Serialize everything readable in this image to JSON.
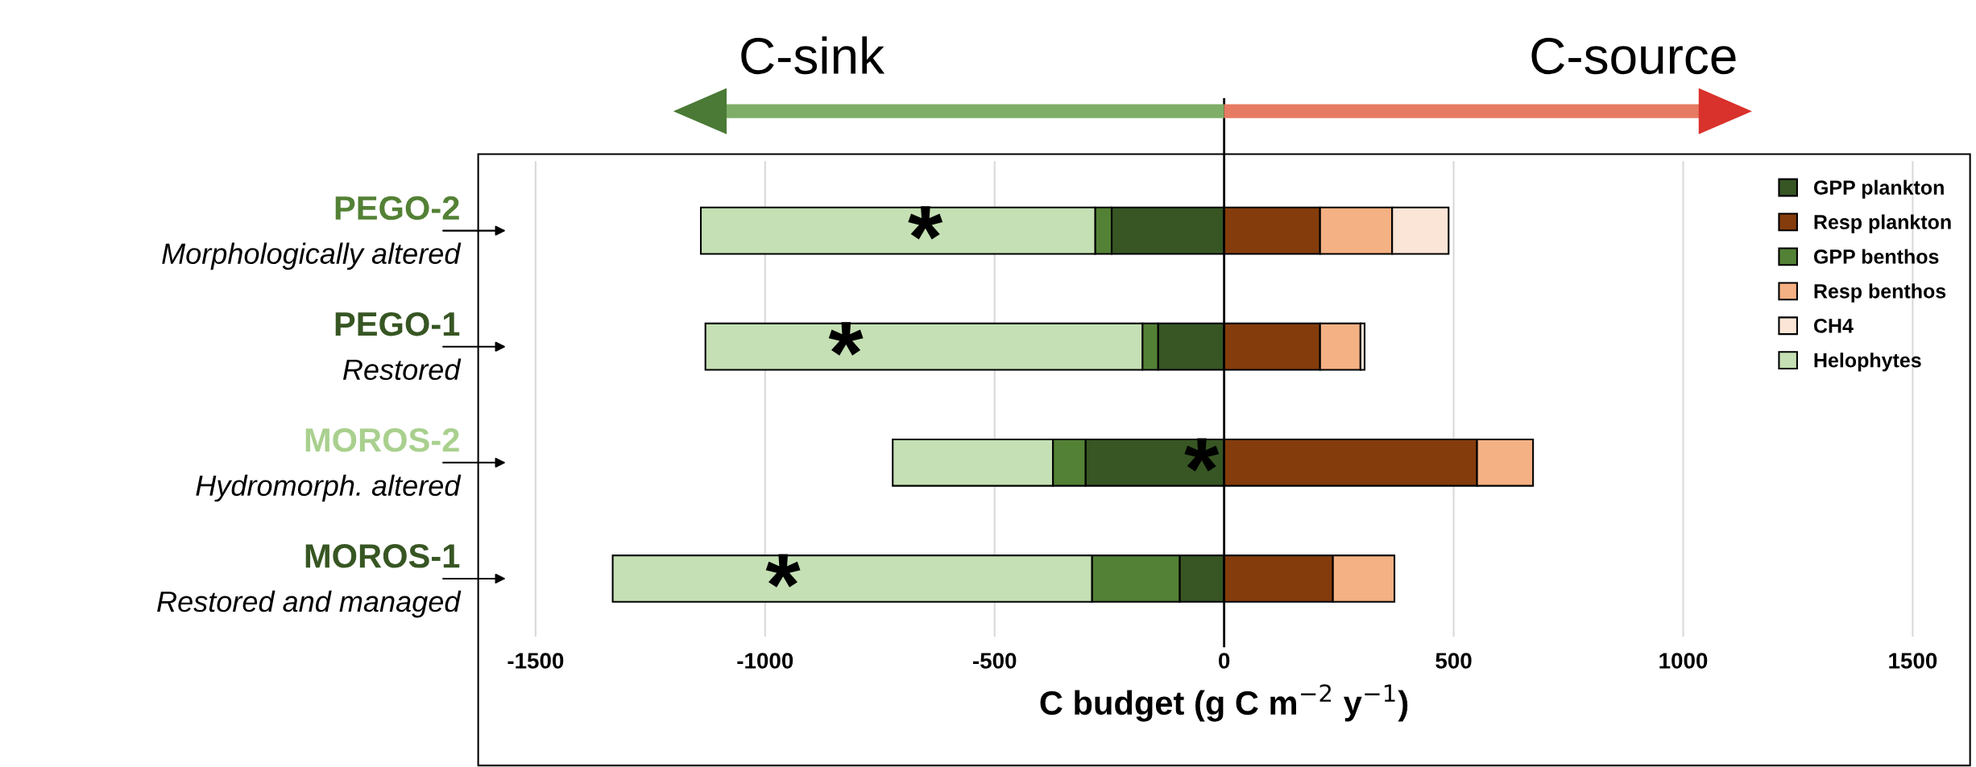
{
  "chart_data": {
    "type": "bar",
    "orientation": "horizontal",
    "stacked": true,
    "xlabel": "C budget (g C m$^{−2}$ y$^{−1}$)",
    "categories": [
      "PEGO-2\nMorphologically altered",
      "PEGO-1\nRestored",
      "MOROS-2\nHydromorph. altered",
      "MOROS-1\nRestored and managed"
    ],
    "series": [
      {
        "name": "GPP plankton",
        "color": "#375623",
        "values": [
          -245,
          -144,
          -302,
          -97
        ]
      },
      {
        "name": "Resp plankton",
        "color": "#843c0c",
        "values": [
          209,
          209,
          551,
          237
        ]
      },
      {
        "name": "GPP benthos",
        "color": "#538135",
        "values": [
          -36,
          -34,
          -71,
          -191
        ]
      },
      {
        "name": "Resp benthos",
        "color": "#f4b183",
        "values": [
          157,
          88,
          122,
          134
        ]
      },
      {
        "name": "CH4",
        "color": "#fbe5d6",
        "values": [
          123,
          9,
          null,
          null
        ]
      },
      {
        "name": "Helophytes",
        "color": "#c5e0b4",
        "values": [
          -859,
          -952,
          -349,
          -1044
        ]
      }
    ],
    "xlim": [
      -1625,
      1625
    ],
    "xticks": [
      -1500,
      -1000,
      -500,
      0,
      500,
      1000,
      1500
    ],
    "grid": "x",
    "legend": "top right",
    "ref_lines": [
      {
        "axis": "x",
        "value": 0,
        "color": "#000000"
      }
    ],
    "annotations": [
      "C-sink",
      "C-source",
      "*",
      "*",
      "*",
      "*"
    ]
  }
}
